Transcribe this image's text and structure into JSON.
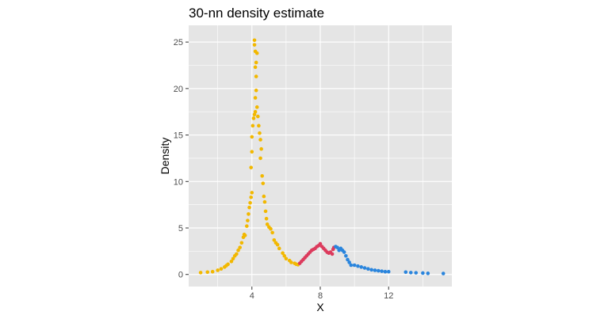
{
  "chart_data": {
    "type": "scatter",
    "title": "30-nn density estimate",
    "xlabel": "X",
    "ylabel": "Density",
    "xlim": [
      0.3,
      15.7
    ],
    "ylim": [
      -1.3,
      26.8
    ],
    "x_ticks": [
      4,
      8,
      12
    ],
    "y_ticks": [
      0,
      5,
      10,
      15,
      20,
      25
    ],
    "grid": true,
    "legend": "none",
    "colors": {
      "panel_background": "#e5e5e5",
      "grid": "#ffffff",
      "cluster_1": "#f2b800",
      "cluster_2": "#dc3b5d",
      "cluster_3": "#2a85dd"
    },
    "series": [
      {
        "color": "#f2b800",
        "points": [
          [
            1.0,
            0.2
          ],
          [
            1.4,
            0.25
          ],
          [
            1.7,
            0.3
          ],
          [
            2.0,
            0.45
          ],
          [
            2.2,
            0.6
          ],
          [
            2.4,
            0.8
          ],
          [
            2.5,
            0.95
          ],
          [
            2.6,
            1.1
          ],
          [
            2.8,
            1.4
          ],
          [
            2.9,
            1.7
          ],
          [
            3.0,
            2.0
          ],
          [
            3.1,
            2.2
          ],
          [
            3.2,
            2.6
          ],
          [
            3.3,
            2.9
          ],
          [
            3.4,
            3.4
          ],
          [
            3.5,
            4.0
          ],
          [
            3.55,
            4.3
          ],
          [
            3.6,
            4.2
          ],
          [
            3.7,
            5.2
          ],
          [
            3.75,
            5.8
          ],
          [
            3.8,
            6.5
          ],
          [
            3.85,
            7.2
          ],
          [
            3.9,
            7.7
          ],
          [
            3.95,
            8.3
          ],
          [
            4.0,
            8.8
          ],
          [
            3.95,
            11.5
          ],
          [
            4.0,
            13.2
          ],
          [
            4.0,
            14.8
          ],
          [
            4.05,
            16.0
          ],
          [
            4.1,
            16.8
          ],
          [
            4.15,
            17.2
          ],
          [
            4.2,
            17.5
          ],
          [
            4.2,
            19.0
          ],
          [
            4.25,
            19.8
          ],
          [
            4.25,
            21.3
          ],
          [
            4.2,
            22.3
          ],
          [
            4.25,
            22.8
          ],
          [
            4.2,
            24.0
          ],
          [
            4.15,
            24.7
          ],
          [
            4.15,
            25.2
          ],
          [
            4.3,
            23.8
          ],
          [
            4.3,
            18.0
          ],
          [
            4.35,
            17.0
          ],
          [
            4.4,
            16.0
          ],
          [
            4.45,
            15.2
          ],
          [
            4.5,
            14.5
          ],
          [
            4.55,
            13.5
          ],
          [
            4.5,
            12.5
          ],
          [
            4.6,
            10.6
          ],
          [
            4.65,
            9.8
          ],
          [
            4.7,
            8.4
          ],
          [
            4.75,
            7.8
          ],
          [
            4.8,
            6.8
          ],
          [
            4.85,
            6.0
          ],
          [
            4.9,
            5.4
          ],
          [
            5.0,
            5.1
          ],
          [
            5.1,
            4.9
          ],
          [
            5.2,
            4.5
          ],
          [
            5.3,
            3.7
          ],
          [
            5.4,
            3.4
          ],
          [
            5.5,
            3.2
          ],
          [
            5.6,
            2.8
          ],
          [
            5.8,
            2.3
          ],
          [
            5.9,
            2.0
          ],
          [
            6.0,
            1.7
          ],
          [
            6.2,
            1.5
          ],
          [
            6.3,
            1.3
          ],
          [
            6.5,
            1.2
          ],
          [
            6.6,
            1.1
          ],
          [
            6.7,
            1.05
          ]
        ]
      },
      {
        "color": "#dc3b5d",
        "points": [
          [
            6.8,
            1.2
          ],
          [
            6.9,
            1.4
          ],
          [
            7.0,
            1.6
          ],
          [
            7.1,
            1.8
          ],
          [
            7.2,
            2.0
          ],
          [
            7.3,
            2.2
          ],
          [
            7.4,
            2.4
          ],
          [
            7.5,
            2.6
          ],
          [
            7.6,
            2.7
          ],
          [
            7.7,
            2.8
          ],
          [
            7.8,
            3.0
          ],
          [
            7.9,
            3.1
          ],
          [
            8.0,
            3.3
          ],
          [
            8.1,
            3.0
          ],
          [
            8.2,
            2.8
          ],
          [
            8.3,
            2.6
          ],
          [
            8.4,
            2.4
          ],
          [
            8.5,
            2.3
          ],
          [
            8.6,
            2.4
          ],
          [
            8.7,
            2.2
          ],
          [
            8.75,
            2.7
          ],
          [
            8.8,
            2.9
          ]
        ]
      },
      {
        "color": "#2a85dd",
        "points": [
          [
            8.9,
            3.0
          ],
          [
            9.0,
            2.9
          ],
          [
            9.1,
            2.6
          ],
          [
            9.2,
            2.8
          ],
          [
            9.3,
            2.6
          ],
          [
            9.4,
            2.4
          ],
          [
            9.5,
            2.0
          ],
          [
            9.6,
            1.6
          ],
          [
            9.7,
            1.3
          ],
          [
            9.8,
            1.0
          ],
          [
            10.0,
            1.0
          ],
          [
            10.2,
            0.9
          ],
          [
            10.4,
            0.8
          ],
          [
            10.6,
            0.7
          ],
          [
            10.8,
            0.6
          ],
          [
            11.0,
            0.5
          ],
          [
            11.2,
            0.45
          ],
          [
            11.4,
            0.4
          ],
          [
            11.6,
            0.35
          ],
          [
            11.8,
            0.3
          ],
          [
            12.0,
            0.3
          ],
          [
            13.0,
            0.25
          ],
          [
            13.3,
            0.2
          ],
          [
            13.6,
            0.18
          ],
          [
            14.0,
            0.15
          ],
          [
            14.3,
            0.12
          ],
          [
            15.2,
            0.1
          ]
        ]
      }
    ]
  }
}
